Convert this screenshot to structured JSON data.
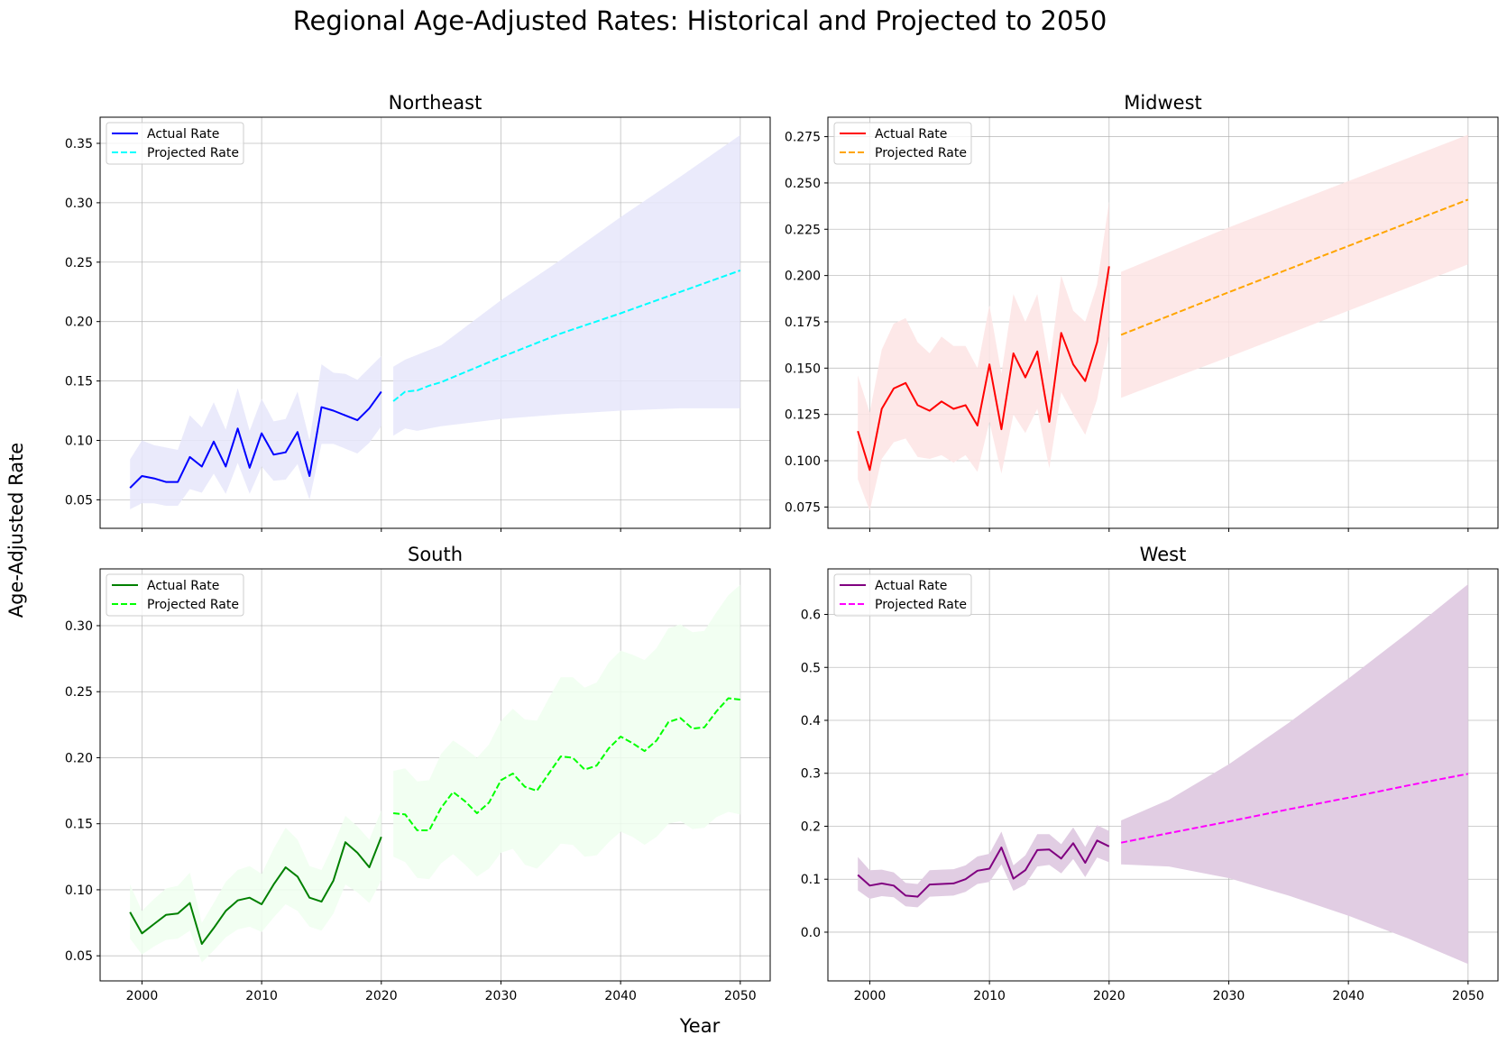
{
  "chart_data": {
    "type": "line",
    "title": "Regional Age-Adjusted Rates: Historical and Projected to 2050",
    "xlabel": "Year",
    "ylabel": "Age-Adjusted Rate",
    "grid": true,
    "legend_position": "top-left",
    "legend_labels": [
      "Actual Rate",
      "Projected Rate"
    ],
    "xlim": [
      1996.5,
      2052.5
    ],
    "xticks": [
      2000,
      2010,
      2020,
      2030,
      2040,
      2050
    ],
    "panels": [
      {
        "title": "Northeast",
        "actual_color": "#0000ff",
        "projected_color": "#00ffff",
        "band_color": "#e6e6fa",
        "ylim": [
          0.026,
          0.372
        ],
        "yticks": [
          0.05,
          0.1,
          0.15,
          0.2,
          0.25,
          0.3,
          0.35
        ],
        "ytick_labels": [
          "0.05",
          "0.10",
          "0.15",
          "0.20",
          "0.25",
          "0.30",
          "0.35"
        ],
        "actual": {
          "x": [
            1999,
            2000,
            2001,
            2002,
            2003,
            2004,
            2005,
            2006,
            2007,
            2008,
            2009,
            2010,
            2011,
            2012,
            2013,
            2014,
            2015,
            2016,
            2017,
            2018,
            2019,
            2020
          ],
          "y": [
            0.06,
            0.07,
            0.068,
            0.065,
            0.065,
            0.086,
            0.078,
            0.099,
            0.078,
            0.11,
            0.077,
            0.106,
            0.088,
            0.09,
            0.107,
            0.07,
            0.128,
            0.125,
            0.121,
            0.117,
            0.127,
            0.141
          ],
          "lower": [
            0.042,
            0.047,
            0.047,
            0.045,
            0.045,
            0.059,
            0.056,
            0.072,
            0.055,
            0.081,
            0.055,
            0.078,
            0.066,
            0.067,
            0.08,
            0.05,
            0.097,
            0.097,
            0.093,
            0.089,
            0.098,
            0.112
          ],
          "upper": [
            0.084,
            0.1,
            0.096,
            0.094,
            0.092,
            0.121,
            0.111,
            0.132,
            0.109,
            0.144,
            0.108,
            0.135,
            0.116,
            0.118,
            0.141,
            0.1,
            0.164,
            0.157,
            0.156,
            0.151,
            0.161,
            0.171
          ]
        },
        "projected": {
          "x": [
            2021,
            2022,
            2023,
            2024,
            2025,
            2030,
            2035,
            2040,
            2045,
            2050
          ],
          "y": [
            0.133,
            0.141,
            0.142,
            0.146,
            0.149,
            0.17,
            0.19,
            0.207,
            0.225,
            0.243
          ],
          "lower": [
            0.104,
            0.11,
            0.108,
            0.11,
            0.112,
            0.118,
            0.122,
            0.125,
            0.127,
            0.127
          ],
          "upper": [
            0.162,
            0.168,
            0.172,
            0.176,
            0.18,
            0.218,
            0.252,
            0.288,
            0.322,
            0.357
          ]
        }
      },
      {
        "title": "Midwest",
        "actual_color": "#ff0000",
        "projected_color": "#ffa500",
        "band_color": "#fde4e4",
        "ylim": [
          0.0635,
          0.2855
        ],
        "yticks": [
          0.075,
          0.1,
          0.125,
          0.15,
          0.175,
          0.2,
          0.225,
          0.25,
          0.275
        ],
        "ytick_labels": [
          "0.075",
          "0.100",
          "0.125",
          "0.150",
          "0.175",
          "0.200",
          "0.225",
          "0.250",
          "0.275"
        ],
        "actual": {
          "x": [
            1999,
            2000,
            2001,
            2002,
            2003,
            2004,
            2005,
            2006,
            2007,
            2008,
            2009,
            2010,
            2011,
            2012,
            2013,
            2014,
            2015,
            2016,
            2017,
            2018,
            2019,
            2020
          ],
          "y": [
            0.116,
            0.095,
            0.128,
            0.139,
            0.142,
            0.13,
            0.127,
            0.132,
            0.128,
            0.13,
            0.119,
            0.152,
            0.117,
            0.158,
            0.145,
            0.159,
            0.121,
            0.169,
            0.152,
            0.143,
            0.164,
            0.205
          ],
          "lower": [
            0.09,
            0.073,
            0.101,
            0.11,
            0.112,
            0.102,
            0.101,
            0.103,
            0.099,
            0.103,
            0.094,
            0.121,
            0.093,
            0.125,
            0.115,
            0.128,
            0.096,
            0.137,
            0.125,
            0.114,
            0.133,
            0.167
          ],
          "upper": [
            0.146,
            0.126,
            0.16,
            0.174,
            0.177,
            0.164,
            0.158,
            0.167,
            0.162,
            0.162,
            0.15,
            0.184,
            0.147,
            0.19,
            0.175,
            0.19,
            0.152,
            0.2,
            0.181,
            0.175,
            0.195,
            0.24
          ]
        },
        "projected": {
          "x": [
            2021,
            2030,
            2040,
            2050
          ],
          "y": [
            0.168,
            0.191,
            0.216,
            0.241
          ],
          "lower": [
            0.134,
            0.156,
            0.181,
            0.206
          ],
          "upper": [
            0.202,
            0.226,
            0.251,
            0.276
          ]
        }
      },
      {
        "title": "South",
        "actual_color": "#008000",
        "projected_color": "#00ff00",
        "band_color": "#f0fff0",
        "ylim": [
          0.031,
          0.343
        ],
        "yticks": [
          0.05,
          0.1,
          0.15,
          0.2,
          0.25,
          0.3
        ],
        "ytick_labels": [
          "0.05",
          "0.10",
          "0.15",
          "0.20",
          "0.25",
          "0.30"
        ],
        "actual": {
          "x": [
            1999,
            2000,
            2001,
            2002,
            2003,
            2004,
            2005,
            2006,
            2007,
            2008,
            2009,
            2010,
            2011,
            2012,
            2013,
            2014,
            2015,
            2016,
            2017,
            2018,
            2019,
            2020
          ],
          "y": [
            0.083,
            0.067,
            0.074,
            0.081,
            0.082,
            0.09,
            0.059,
            0.071,
            0.084,
            0.092,
            0.094,
            0.089,
            0.104,
            0.117,
            0.11,
            0.094,
            0.091,
            0.107,
            0.136,
            0.128,
            0.117,
            0.14
          ],
          "lower": [
            0.063,
            0.051,
            0.057,
            0.062,
            0.063,
            0.069,
            0.045,
            0.054,
            0.064,
            0.07,
            0.072,
            0.068,
            0.079,
            0.089,
            0.084,
            0.072,
            0.069,
            0.082,
            0.104,
            0.098,
            0.09,
            0.107
          ],
          "upper": [
            0.104,
            0.084,
            0.093,
            0.101,
            0.103,
            0.113,
            0.075,
            0.09,
            0.106,
            0.115,
            0.118,
            0.112,
            0.131,
            0.147,
            0.138,
            0.118,
            0.115,
            0.134,
            0.156,
            0.148,
            0.138,
            0.16
          ]
        },
        "projected": {
          "x": [
            2021,
            2022,
            2023,
            2024,
            2025,
            2026,
            2027,
            2028,
            2029,
            2030,
            2031,
            2032,
            2033,
            2034,
            2035,
            2036,
            2037,
            2038,
            2039,
            2040,
            2041,
            2042,
            2043,
            2044,
            2045,
            2046,
            2047,
            2048,
            2049,
            2050
          ],
          "y": [
            0.158,
            0.157,
            0.145,
            0.145,
            0.162,
            0.174,
            0.167,
            0.158,
            0.166,
            0.183,
            0.188,
            0.178,
            0.175,
            0.188,
            0.201,
            0.2,
            0.191,
            0.194,
            0.207,
            0.216,
            0.211,
            0.205,
            0.213,
            0.227,
            0.23,
            0.222,
            0.223,
            0.235,
            0.245,
            0.244
          ],
          "lower": [
            0.125,
            0.121,
            0.109,
            0.108,
            0.12,
            0.127,
            0.119,
            0.11,
            0.116,
            0.128,
            0.131,
            0.119,
            0.116,
            0.125,
            0.135,
            0.134,
            0.125,
            0.126,
            0.136,
            0.144,
            0.14,
            0.134,
            0.14,
            0.15,
            0.152,
            0.146,
            0.147,
            0.155,
            0.159,
            0.157
          ],
          "upper": [
            0.19,
            0.192,
            0.182,
            0.183,
            0.203,
            0.213,
            0.207,
            0.2,
            0.21,
            0.228,
            0.237,
            0.229,
            0.228,
            0.245,
            0.261,
            0.261,
            0.253,
            0.257,
            0.272,
            0.281,
            0.278,
            0.274,
            0.283,
            0.298,
            0.301,
            0.295,
            0.296,
            0.31,
            0.323,
            0.331
          ]
        }
      },
      {
        "title": "West",
        "actual_color": "#800080",
        "projected_color": "#ff00ff",
        "band_color": "#e1cde3",
        "ylim": [
          -0.092,
          0.686
        ],
        "yticks": [
          0.0,
          0.1,
          0.2,
          0.3,
          0.4,
          0.5,
          0.6
        ],
        "ytick_labels": [
          "0.0",
          "0.1",
          "0.2",
          "0.3",
          "0.4",
          "0.5",
          "0.6"
        ],
        "actual": {
          "x": [
            1999,
            2000,
            2001,
            2002,
            2003,
            2004,
            2005,
            2006,
            2007,
            2008,
            2009,
            2010,
            2011,
            2012,
            2013,
            2014,
            2015,
            2016,
            2017,
            2018,
            2019,
            2020
          ],
          "y": [
            0.108,
            0.088,
            0.092,
            0.088,
            0.069,
            0.067,
            0.09,
            0.091,
            0.092,
            0.1,
            0.116,
            0.12,
            0.16,
            0.101,
            0.117,
            0.155,
            0.156,
            0.139,
            0.168,
            0.131,
            0.173,
            0.162
          ],
          "lower": [
            0.079,
            0.063,
            0.068,
            0.066,
            0.049,
            0.047,
            0.067,
            0.068,
            0.069,
            0.076,
            0.091,
            0.095,
            0.128,
            0.078,
            0.09,
            0.124,
            0.127,
            0.111,
            0.138,
            0.104,
            0.141,
            0.132
          ],
          "upper": [
            0.142,
            0.117,
            0.118,
            0.113,
            0.093,
            0.091,
            0.117,
            0.118,
            0.119,
            0.126,
            0.143,
            0.148,
            0.19,
            0.126,
            0.145,
            0.185,
            0.185,
            0.166,
            0.198,
            0.161,
            0.202,
            0.191
          ]
        },
        "projected": {
          "x": [
            2021,
            2025,
            2030,
            2035,
            2040,
            2045,
            2050
          ],
          "y": [
            0.169,
            0.187,
            0.209,
            0.232,
            0.254,
            0.277,
            0.299
          ],
          "lower": [
            0.128,
            0.124,
            0.102,
            0.069,
            0.031,
            -0.012,
            -0.06
          ],
          "upper": [
            0.211,
            0.25,
            0.317,
            0.395,
            0.479,
            0.566,
            0.657
          ]
        }
      }
    ]
  }
}
